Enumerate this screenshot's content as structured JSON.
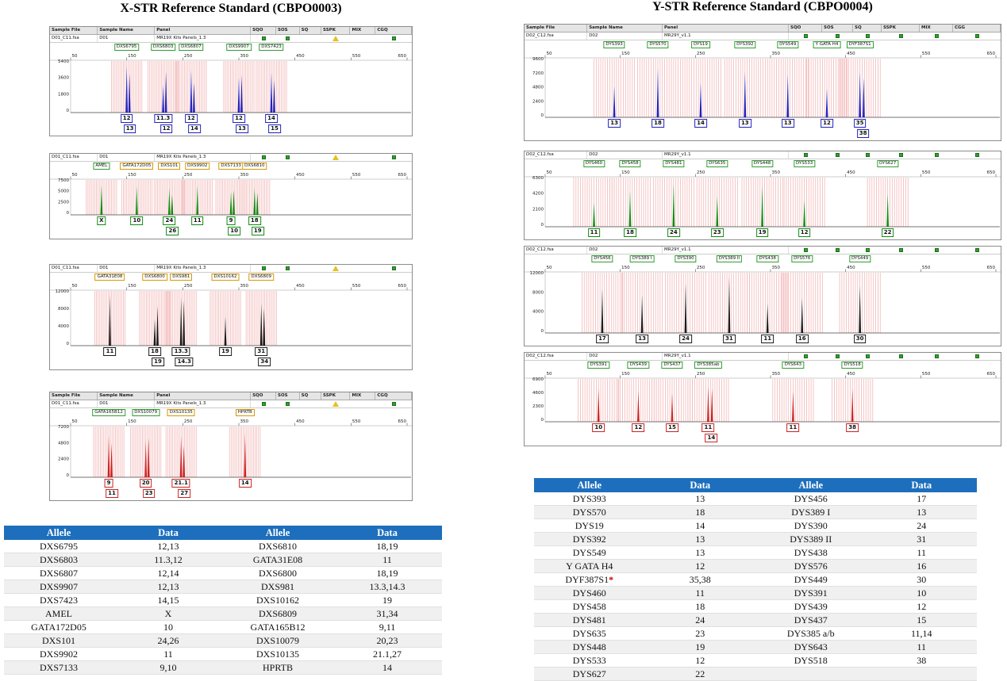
{
  "colors": {
    "table_header_bg": "#1d6fbd",
    "table_header_text": "#ffffff",
    "bin_overlay": "#f3b6b6",
    "asterisk_red": "#cc0000",
    "status_green": "#33a02c",
    "status_yellow": "#e3c220"
  },
  "chart_data": {
    "type": "line",
    "subtype": "electropherogram-set",
    "x_axis": {
      "ticks": [
        50,
        150,
        250,
        350,
        450,
        550,
        650
      ],
      "range": [
        50,
        650
      ],
      "unit": "bp"
    },
    "groups": [
      {
        "id": "x-str",
        "title": "X-STR Reference Standard (CBPO0003)",
        "sample_file": "D01_C11.fsa",
        "sample_name": "D01",
        "panel_name": "MR19X Kits Panels_1.3",
        "header_cols": [
          "Sample File",
          "Sample Name",
          "Panel",
          "SQO",
          "SOS",
          "SQ",
          "SSPK",
          "MIX",
          "CGQ"
        ],
        "indicators": [
          {
            "col": 3,
            "type": "square"
          },
          {
            "col": 4,
            "type": "square"
          },
          {
            "col": 6,
            "type": "triangle"
          },
          {
            "col": 8,
            "type": "square"
          }
        ],
        "traces": [
          {
            "dye": "blue",
            "color": "#2222bb",
            "marker_color": "#2f9e2f",
            "col_header": true,
            "yticks": [
              "5400",
              "3600",
              "1800",
              "0"
            ],
            "markers": [
              {
                "name": "DXS6795",
                "pos": 150,
                "alleles": [
                  "12",
                  "13"
                ],
                "h": [
                  0.93,
                  0.78
                ]
              },
              {
                "name": "DXS6803",
                "pos": 215,
                "alleles": [
                  "11.3",
                  "12"
                ],
                "h": [
                  0.55,
                  0.82
                ]
              },
              {
                "name": "DXS6807",
                "pos": 265,
                "alleles": [
                  "12",
                  "14"
                ],
                "h": [
                  0.85,
                  0.6
                ]
              },
              {
                "name": "DXS9907",
                "pos": 350,
                "alleles": [
                  "12",
                  "13"
                ],
                "h": [
                  0.7,
                  0.75
                ]
              },
              {
                "name": "DXS7423",
                "pos": 408,
                "alleles": [
                  "14",
                  "15"
                ],
                "h": [
                  0.8,
                  0.65
                ]
              }
            ]
          },
          {
            "dye": "green",
            "color": "#128a12",
            "marker_color": "#d79a00",
            "col_header": false,
            "yticks": [
              "7500",
              "5000",
              "2500",
              "0"
            ],
            "markers": [
              {
                "name": "AMEL",
                "pos": 105,
                "alleles": [
                  "X"
                ],
                "h": [
                  0.9
                ],
                "mc": "#2f9e2f"
              },
              {
                "name": "GATA172D05",
                "pos": 168,
                "alleles": [
                  "10"
                ],
                "h": [
                  0.85
                ]
              },
              {
                "name": "DXS101",
                "pos": 226,
                "alleles": [
                  "24",
                  "26"
                ],
                "h": [
                  0.8,
                  0.6
                ]
              },
              {
                "name": "DXS9902",
                "pos": 276,
                "alleles": [
                  "11"
                ],
                "h": [
                  0.88
                ]
              },
              {
                "name": "DXS7133",
                "pos": 336,
                "alleles": [
                  "9",
                  "10"
                ],
                "h": [
                  0.7,
                  0.75
                ]
              },
              {
                "name": "DXS6810",
                "pos": 378,
                "alleles": [
                  "18",
                  "19"
                ],
                "h": [
                  0.82,
                  0.66
                ]
              }
            ]
          },
          {
            "dye": "black",
            "color": "#1a1a1a",
            "marker_color": "#d79a00",
            "col_header": false,
            "yticks": [
              "12000",
              "8000",
              "4000",
              "0"
            ],
            "markers": [
              {
                "name": "GATA31E08",
                "pos": 120,
                "alleles": [
                  "11"
                ],
                "h": [
                  0.95
                ]
              },
              {
                "name": "DXS6800",
                "pos": 200,
                "alleles": [
                  "18",
                  "19"
                ],
                "h": [
                  0.5,
                  0.75
                ]
              },
              {
                "name": "DXS981",
                "pos": 247,
                "alleles": [
                  "13.3",
                  "14.3"
                ],
                "h": [
                  0.9,
                  0.85
                ]
              },
              {
                "name": "DXS10162",
                "pos": 326,
                "alleles": [
                  "19"
                ],
                "h": [
                  0.55
                ]
              },
              {
                "name": "DXS6809",
                "pos": 390,
                "alleles": [
                  "31",
                  "34"
                ],
                "h": [
                  0.8,
                  0.7
                ]
              }
            ]
          },
          {
            "dye": "red",
            "color": "#cc2222",
            "marker_color": "#d79a00",
            "col_header": true,
            "yticks": [
              "7200",
              "4800",
              "2400",
              "0"
            ],
            "markers": [
              {
                "name": "GATA165B12",
                "pos": 118,
                "alleles": [
                  "9",
                  "11"
                ],
                "h": [
                  0.85,
                  0.7
                ],
                "mc": "#2f9e2f"
              },
              {
                "name": "DXS10079",
                "pos": 184,
                "alleles": [
                  "20",
                  "23"
                ],
                "h": [
                  0.75,
                  0.8
                ],
                "mc": "#2f9e2f"
              },
              {
                "name": "DXS10135",
                "pos": 247,
                "alleles": [
                  "21.1",
                  "27"
                ],
                "h": [
                  0.85,
                  0.65
                ]
              },
              {
                "name": "HPRTB",
                "pos": 361,
                "alleles": [
                  "14"
                ],
                "h": [
                  0.9
                ]
              }
            ]
          }
        ],
        "table": {
          "headers": [
            "Allele",
            "Data",
            "Allele",
            "Data"
          ],
          "rows": [
            [
              "DXS6795",
              "12,13",
              "DXS6810",
              "18,19"
            ],
            [
              "DXS6803",
              "11.3,12",
              "GATA31E08",
              "11"
            ],
            [
              "DXS6807",
              "12,14",
              "DXS6800",
              "18,19"
            ],
            [
              "DXS9907",
              "12,13",
              "DXS981",
              "13.3,14.3"
            ],
            [
              "DXS7423",
              "14,15",
              "DXS10162",
              "19"
            ],
            [
              "AMEL",
              "X",
              "DXS6809",
              "31,34"
            ],
            [
              "GATA172D05",
              "10",
              "GATA165B12",
              "9,11"
            ],
            [
              "DXS101",
              "24,26",
              "DXS10079",
              "20,23"
            ],
            [
              "DXS9902",
              "11",
              "DXS10135",
              "21.1,27"
            ],
            [
              "DXS7133",
              "9,10",
              "HPRTB",
              "14"
            ]
          ]
        }
      },
      {
        "id": "y-str",
        "title": "Y-STR Reference Standard (CBPO0004)",
        "sample_file": "D02_C12.fsa",
        "sample_name": "D02",
        "panel_name": "MR29Y_v1.1",
        "header_cols": [
          "Sample File",
          "Sample Name",
          "Panel",
          "SQO",
          "SOS",
          "SQ",
          "SSPK",
          "MIX",
          "CGG"
        ],
        "indicators": [
          {
            "col": 3,
            "type": "square"
          },
          {
            "col": 4,
            "type": "square"
          },
          {
            "col": 5,
            "type": "square"
          },
          {
            "col": 6,
            "type": "square"
          },
          {
            "col": 7,
            "type": "square"
          },
          {
            "col": 8,
            "type": "square"
          }
        ],
        "traces": [
          {
            "dye": "blue",
            "color": "#2222bb",
            "marker_color": "#2f9e2f",
            "col_header": true,
            "yticks": [
              "9600",
              "7200",
              "4800",
              "2400",
              "0"
            ],
            "markers": [
              {
                "name": "DYS393",
                "pos": 142,
                "alleles": [
                  "13"
                ],
                "h": [
                  0.55
                ]
              },
              {
                "name": "DYS570",
                "pos": 200,
                "alleles": [
                  "18"
                ],
                "h": [
                  0.85
                ]
              },
              {
                "name": "DYS19",
                "pos": 257,
                "alleles": [
                  "14"
                ],
                "h": [
                  0.6
                ]
              },
              {
                "name": "DYS392",
                "pos": 316,
                "alleles": [
                  "13"
                ],
                "h": [
                  0.8
                ]
              },
              {
                "name": "DYS549",
                "pos": 373,
                "alleles": [
                  "13"
                ],
                "h": [
                  0.75
                ]
              },
              {
                "name": "Y GATA H4",
                "pos": 425,
                "alleles": [
                  "12"
                ],
                "h": [
                  0.5
                ]
              },
              {
                "name": "DYF387S1",
                "pos": 469,
                "alleles": [
                  "35",
                  "38"
                ],
                "h": [
                  0.8,
                  0.7
                ]
              }
            ]
          },
          {
            "dye": "green",
            "color": "#128a12",
            "marker_color": "#2f9e2f",
            "col_header": false,
            "yticks": [
              "6300",
              "4200",
              "2100",
              "0"
            ],
            "markers": [
              {
                "name": "DYS460",
                "pos": 115,
                "alleles": [
                  "11"
                ],
                "h": [
                  0.5
                ]
              },
              {
                "name": "DYS458",
                "pos": 163,
                "alleles": [
                  "18"
                ],
                "h": [
                  0.75
                ]
              },
              {
                "name": "DYS481",
                "pos": 221,
                "alleles": [
                  "24"
                ],
                "h": [
                  0.9
                ]
              },
              {
                "name": "DYS635",
                "pos": 279,
                "alleles": [
                  "23"
                ],
                "h": [
                  0.65
                ]
              },
              {
                "name": "DYS448",
                "pos": 339,
                "alleles": [
                  "19"
                ],
                "h": [
                  0.85
                ]
              },
              {
                "name": "DYS533",
                "pos": 395,
                "alleles": [
                  "12"
                ],
                "h": [
                  0.55
                ]
              },
              {
                "name": "DYS627",
                "pos": 506,
                "alleles": [
                  "22"
                ],
                "h": [
                  0.7
                ]
              }
            ]
          },
          {
            "dye": "black",
            "color": "#1a1a1a",
            "marker_color": "#2f9e2f",
            "col_header": false,
            "yticks": [
              "12000",
              "8000",
              "4000",
              "0"
            ],
            "markers": [
              {
                "name": "DYS456",
                "pos": 126,
                "alleles": [
                  "17"
                ],
                "h": [
                  0.75
                ]
              },
              {
                "name": "DYS389 I",
                "pos": 179,
                "alleles": [
                  "13"
                ],
                "h": [
                  0.65
                ]
              },
              {
                "name": "DYS390",
                "pos": 237,
                "alleles": [
                  "24"
                ],
                "h": [
                  0.85
                ]
              },
              {
                "name": "DYS389 II",
                "pos": 295,
                "alleles": [
                  "31"
                ],
                "h": [
                  0.95
                ]
              },
              {
                "name": "DYS438",
                "pos": 346,
                "alleles": [
                  "11"
                ],
                "h": [
                  0.5
                ]
              },
              {
                "name": "DYS576",
                "pos": 392,
                "alleles": [
                  "16"
                ],
                "h": [
                  0.6
                ]
              },
              {
                "name": "DYS449",
                "pos": 469,
                "alleles": [
                  "30"
                ],
                "h": [
                  0.8
                ]
              }
            ]
          },
          {
            "dye": "red",
            "color": "#cc2222",
            "marker_color": "#2f9e2f",
            "col_header": false,
            "yticks": [
              "6900",
              "4600",
              "2300",
              "0"
            ],
            "markers": [
              {
                "name": "DYS391",
                "pos": 121,
                "alleles": [
                  "10"
                ],
                "h": [
                  0.8
                ]
              },
              {
                "name": "DYS439",
                "pos": 174,
                "alleles": [
                  "12"
                ],
                "h": [
                  0.75
                ]
              },
              {
                "name": "DYS437",
                "pos": 219,
                "alleles": [
                  "15"
                ],
                "h": [
                  0.7
                ]
              },
              {
                "name": "DYS385ab",
                "pos": 267,
                "alleles": [
                  "11",
                  "14"
                ],
                "h": [
                  0.85,
                  0.8
                ]
              },
              {
                "name": "DYS643",
                "pos": 380,
                "alleles": [
                  "11"
                ],
                "h": [
                  0.75
                ]
              },
              {
                "name": "DYS518",
                "pos": 459,
                "alleles": [
                  "38"
                ],
                "h": [
                  0.8
                ]
              }
            ]
          }
        ],
        "table": {
          "headers": [
            "Allele",
            "Data",
            "Allele",
            "Data"
          ],
          "rows": [
            [
              "DYS393",
              "13",
              "DYS456",
              "17"
            ],
            [
              "DYS570",
              "18",
              "DYS389 I",
              "13"
            ],
            [
              "DYS19",
              "14",
              "DYS390",
              "24"
            ],
            [
              "DYS392",
              "13",
              "DYS389 II",
              "31"
            ],
            [
              "DYS549",
              "13",
              "DYS438",
              "11"
            ],
            [
              "Y GATA H4",
              "12",
              "DYS576",
              "16"
            ],
            [
              "DYF387S1*",
              "35,38",
              "DYS449",
              "30"
            ],
            [
              "DYS460",
              "11",
              "DYS391",
              "10"
            ],
            [
              "DYS458",
              "18",
              "DYS439",
              "12"
            ],
            [
              "DYS481",
              "24",
              "DYS437",
              "15"
            ],
            [
              "DYS635",
              "23",
              "DYS385 a/b",
              "11,14"
            ],
            [
              "DYS448",
              "19",
              "DYS643",
              "11"
            ],
            [
              "DYS533",
              "12",
              "DYS518",
              "38"
            ],
            [
              "DYS627",
              "22",
              "",
              ""
            ]
          ]
        }
      }
    ]
  }
}
